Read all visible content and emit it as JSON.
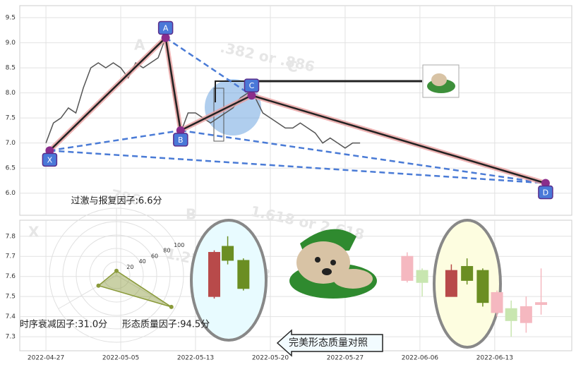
{
  "chart_data": [
    {
      "type": "line",
      "x": [
        0,
        0.1,
        0.2,
        0.3,
        0.4,
        0.5,
        0.6,
        0.7,
        0.8,
        0.9,
        1.0,
        1.1,
        1.2,
        1.3,
        1.4,
        1.5,
        1.6,
        1.7,
        1.8,
        1.9,
        2.0,
        2.1,
        2.2,
        2.3,
        2.4,
        2.5,
        2.6,
        2.7,
        2.8,
        2.9,
        3.0,
        3.1,
        3.2,
        3.3,
        3.4,
        3.5,
        3.6,
        3.7,
        3.8,
        3.9,
        4.0,
        4.1,
        4.2
      ],
      "values": [
        7.0,
        7.4,
        7.5,
        7.7,
        7.6,
        8.1,
        8.5,
        8.6,
        8.5,
        8.6,
        8.5,
        8.3,
        8.6,
        8.5,
        8.6,
        8.7,
        9.1,
        8.0,
        7.2,
        7.6,
        7.6,
        7.5,
        7.4,
        7.5,
        7.6,
        7.7,
        7.9,
        8.0,
        7.9,
        7.6,
        7.5,
        7.4,
        7.3,
        7.3,
        7.4,
        7.3,
        7.2,
        7.0,
        7.1,
        7.0,
        6.9,
        7.0,
        7.0
      ],
      "color": "#555555",
      "xlim": [
        -0.35,
        7.03
      ],
      "ylim": [
        5.56,
        9.74
      ],
      "yticks": [
        {
          "value": 6.0,
          "label": "6.0"
        },
        6.5,
        {
          "value": 7.0,
          "label": "7.0"
        },
        7.5,
        {
          "value": 8.0,
          "label": "8.0"
        },
        8.5,
        {
          "value": 9.0,
          "label": "9.0"
        },
        9.5
      ],
      "grid": true,
      "pattern": {
        "labels": [
          "X",
          "A",
          "B",
          "C",
          "D"
        ],
        "x": [
          0.05,
          1.6,
          1.8,
          2.75,
          6.68
        ],
        "values": [
          6.85,
          9.1,
          7.25,
          7.95,
          6.2
        ],
        "color": "#222222",
        "dash_color": "#4a7bd6"
      },
      "annotations": [
        "A",
        "C",
        "X",
        "B",
        ".382 or .886",
        "1.618 or 2.618",
        "1.27 or 1.618",
        ".786"
      ]
    },
    {
      "type": "radar",
      "categories": [
        "过激与报复因子:6.6分",
        "时序衰减因子:31.0分",
        "形态质量因子:94.5分"
      ],
      "values": [
        6.6,
        31.0,
        94.5
      ],
      "color": "#8a9a3a",
      "ylim": [
        0,
        100
      ],
      "yticks": [
        20,
        40,
        60,
        80,
        100
      ]
    },
    {
      "type": "candlestick",
      "x": [
        2.25,
        2.43,
        2.64,
        4.83,
        5.03,
        5.42,
        5.63,
        5.84,
        6.03,
        6.22,
        6.42,
        6.62
      ],
      "open": [
        7.5,
        7.75,
        7.68,
        7.58,
        7.63,
        7.5,
        7.65,
        7.63,
        7.42,
        7.44,
        7.37,
        7.46
      ],
      "close": [
        7.72,
        7.68,
        7.54,
        7.7,
        7.57,
        7.63,
        7.58,
        7.47,
        7.52,
        7.38,
        7.45,
        7.47
      ],
      "high": [
        7.73,
        7.8,
        7.69,
        7.72,
        7.64,
        7.66,
        7.69,
        7.64,
        7.53,
        7.48,
        7.5,
        7.64
      ],
      "low": [
        7.49,
        7.66,
        7.53,
        7.57,
        7.5,
        7.5,
        7.56,
        7.45,
        7.4,
        7.3,
        7.32,
        7.41
      ],
      "colors": [
        "#b84a4a",
        "#6b8e23",
        "#6b8e23",
        "#f5b8c0",
        "#c8e6b0",
        "#b84a4a",
        "#6b8e23",
        "#6b8e23",
        "#f5b8c0",
        "#c8e6b0",
        "#f5b8c0",
        "#f5b8c0"
      ],
      "xlim": [
        -0.35,
        7.03
      ],
      "ylim": [
        7.23,
        7.88
      ],
      "yticks": [
        7.3,
        7.4,
        7.5,
        7.6,
        7.7,
        7.8
      ],
      "xticks": [
        {
          "value": 0,
          "label": "2022-04-27"
        },
        {
          "value": 1,
          "label": "2022-05-05"
        },
        {
          "value": 2,
          "label": "2022-05-13"
        },
        {
          "value": 3,
          "label": "2022-05-20"
        },
        {
          "value": 4,
          "label": "2022-05-27"
        },
        {
          "value": 5,
          "label": "2022-06-06"
        },
        {
          "value": 6,
          "label": "2022-06-13"
        }
      ],
      "caption": "完美形态质量对照"
    }
  ]
}
